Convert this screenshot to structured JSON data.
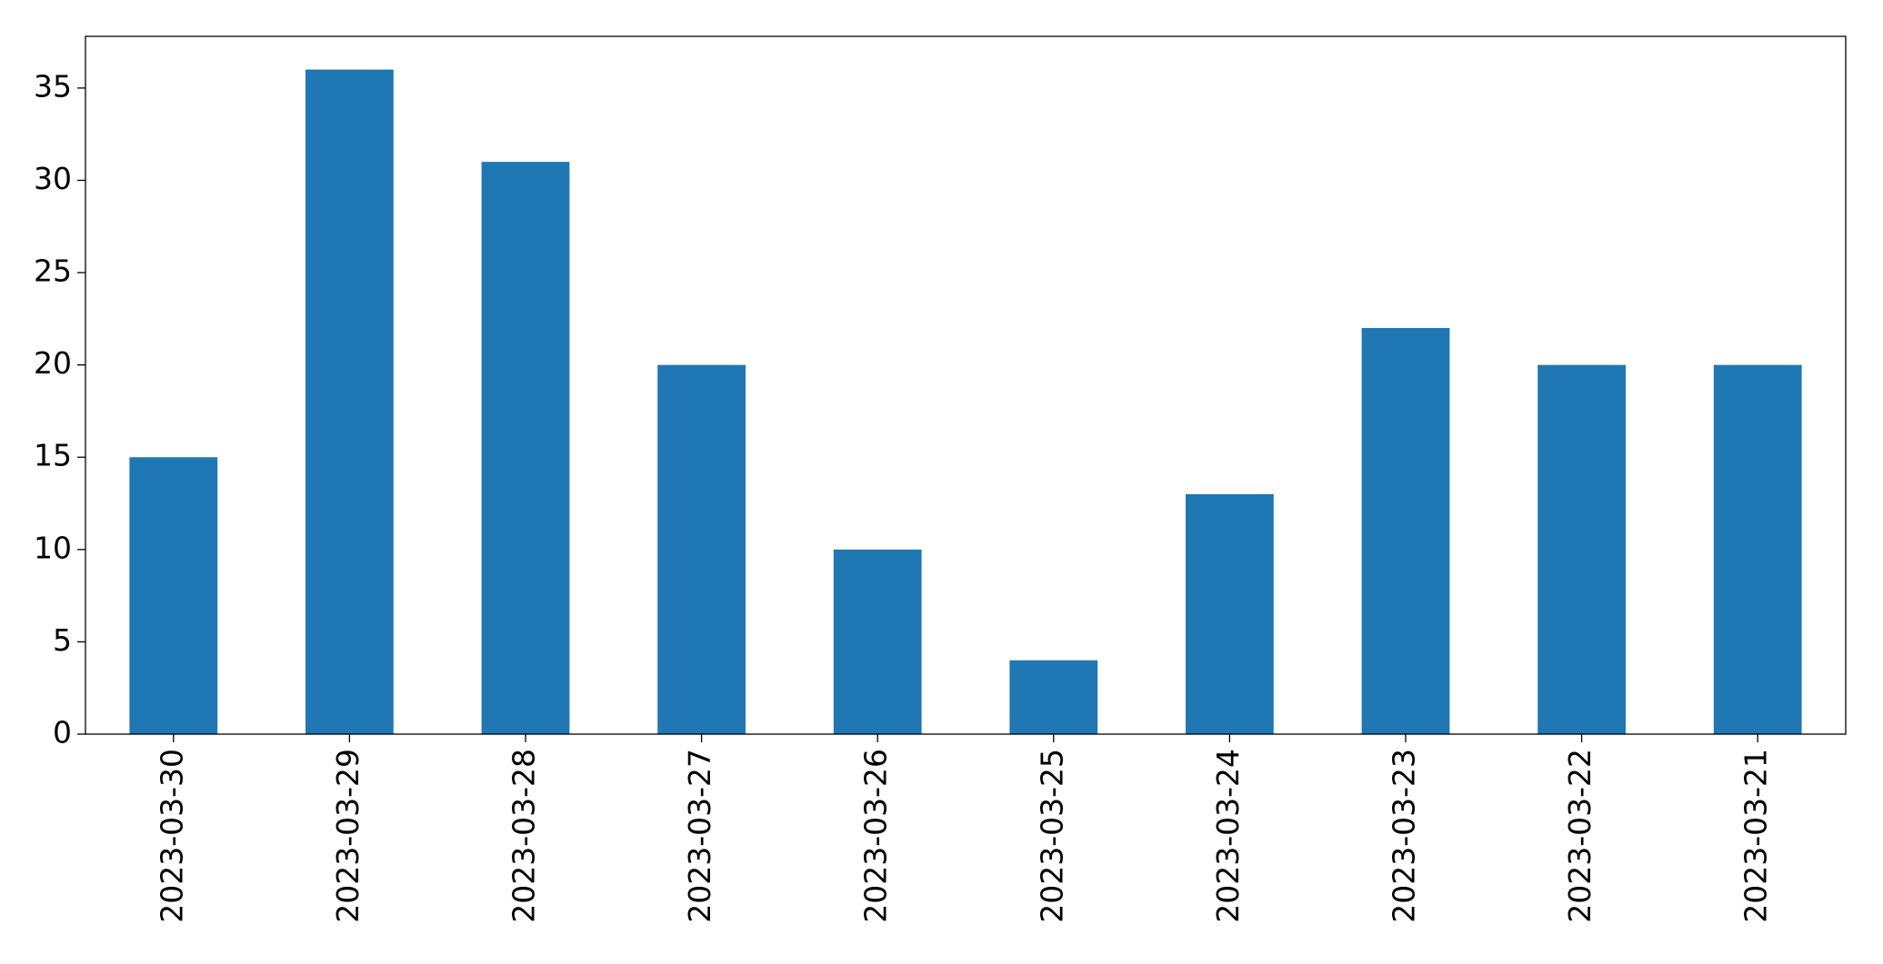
{
  "chart_data": {
    "type": "bar",
    "categories": [
      "2023-03-30",
      "2023-03-29",
      "2023-03-28",
      "2023-03-27",
      "2023-03-26",
      "2023-03-25",
      "2023-03-24",
      "2023-03-23",
      "2023-03-22",
      "2023-03-21"
    ],
    "values": [
      15,
      36,
      31,
      20,
      10,
      4,
      13,
      22,
      20,
      20
    ],
    "color": "#1f77b4",
    "ylim": [
      0,
      37.8
    ],
    "yticks": [
      0,
      5,
      10,
      15,
      20,
      25,
      30,
      35
    ],
    "grid": false
  }
}
